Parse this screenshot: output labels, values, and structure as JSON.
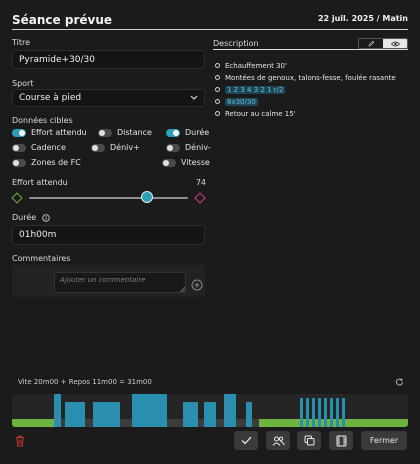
{
  "header": {
    "title": "Séance prévue",
    "date": "22 juil. 2025 / Matin"
  },
  "form": {
    "titre_label": "Titre",
    "titre_value": "Pyramide+30/30",
    "sport_label": "Sport",
    "sport_value": "Course à pied",
    "donnees_label": "Données cibles",
    "toggles": [
      {
        "label": "Effort attendu",
        "on": true
      },
      {
        "label": "Distance",
        "on": false
      },
      {
        "label": "Durée",
        "on": true
      },
      {
        "label": "Cadence",
        "on": false
      },
      {
        "label": "Déniv+",
        "on": false
      },
      {
        "label": "Déniv-",
        "on": false
      },
      {
        "label": "Zones de FC",
        "on": false
      },
      {
        "label": "Vitesse",
        "on": false
      }
    ],
    "effort_label": "Effort attendu",
    "effort_value": "74",
    "effort_min": 0,
    "effort_max": 100,
    "duree_label": "Durée",
    "duree_value": "01h00m",
    "commentaires_label": "Commentaires",
    "comment_placeholder": "Ajouter un commentaire"
  },
  "description": {
    "label": "Description",
    "items": [
      {
        "text": "Echauffement 30'"
      },
      {
        "text": "Montées de genoux, talons-fesse, foulée rasante"
      },
      {
        "chips": [
          "1 2 3 4 3 2 1 r/2"
        ]
      },
      {
        "chips": [
          "8x30/30"
        ]
      },
      {
        "text": "Retour au calme 15'"
      }
    ]
  },
  "workout": {
    "summary": "Vite 20m00 + Repos 11m00 = 31m00",
    "colors": {
      "warmup": "#6db33f",
      "work": "#2a8fae",
      "rest": "#3c3c3c"
    }
  },
  "footer": {
    "fermer_label": "Fermer"
  },
  "colors": {
    "accent": "#2d9fb8",
    "danger": "#c0392b",
    "green": "#6db33f",
    "pink": "#d63c8f"
  }
}
